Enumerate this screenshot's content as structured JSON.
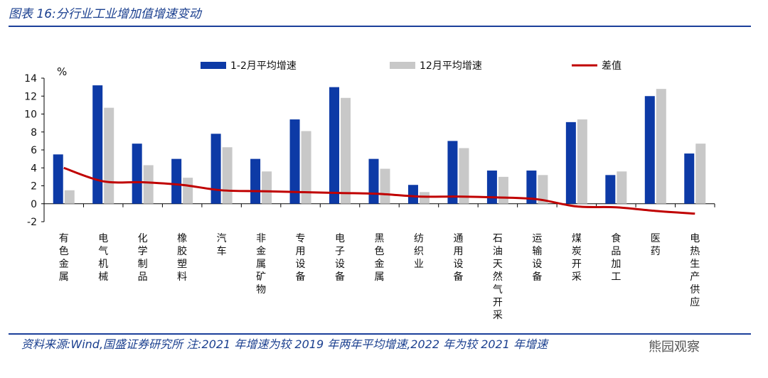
{
  "header": {
    "title": "图表 16:分行业工业增加值增速变动"
  },
  "footer": {
    "note": "资料来源:Wind,国盛证券研究所 注:2021 年增速为较 2019 年两年平均增速,2022 年为较 2021 年增速",
    "watermark": "熊园观察"
  },
  "colors": {
    "series1": "#0d3aa6",
    "series2": "#c8c8c8",
    "diff": "#c00000",
    "rule": "#1b3f9a"
  },
  "chart_data": {
    "type": "bar",
    "ylabel": "%",
    "ylim": [
      -2,
      14
    ],
    "yticks": [
      -2,
      0,
      2,
      4,
      6,
      8,
      10,
      12,
      14
    ],
    "categories": [
      "有色金属",
      "电气机械",
      "化学制品",
      "橡胶塑料",
      "汽车",
      "非金属矿物",
      "专用设备",
      "电子设备",
      "黑色金属",
      "纺织业",
      "通用设备",
      "石油天然气开采",
      "运输设备",
      "煤炭开采",
      "食品加工",
      "医药",
      "电热生产供应"
    ],
    "series": [
      {
        "name": "1-2月平均增速",
        "type": "bar",
        "values": [
          5.5,
          13.2,
          6.7,
          5.0,
          7.8,
          5.0,
          9.4,
          13.0,
          5.0,
          2.1,
          7.0,
          3.7,
          3.7,
          9.1,
          3.2,
          12.0,
          5.6
        ]
      },
      {
        "name": "12月平均增速",
        "type": "bar",
        "values": [
          1.5,
          10.7,
          4.3,
          2.9,
          6.3,
          3.6,
          8.1,
          11.8,
          3.9,
          1.3,
          6.2,
          3.0,
          3.2,
          9.4,
          3.6,
          12.8,
          6.7
        ]
      },
      {
        "name": "差值",
        "type": "line",
        "values": [
          4.0,
          2.5,
          2.4,
          2.1,
          1.5,
          1.4,
          1.3,
          1.2,
          1.1,
          0.8,
          0.8,
          0.7,
          0.5,
          -0.3,
          -0.4,
          -0.8,
          -1.1
        ]
      }
    ],
    "legend_position": "top"
  }
}
